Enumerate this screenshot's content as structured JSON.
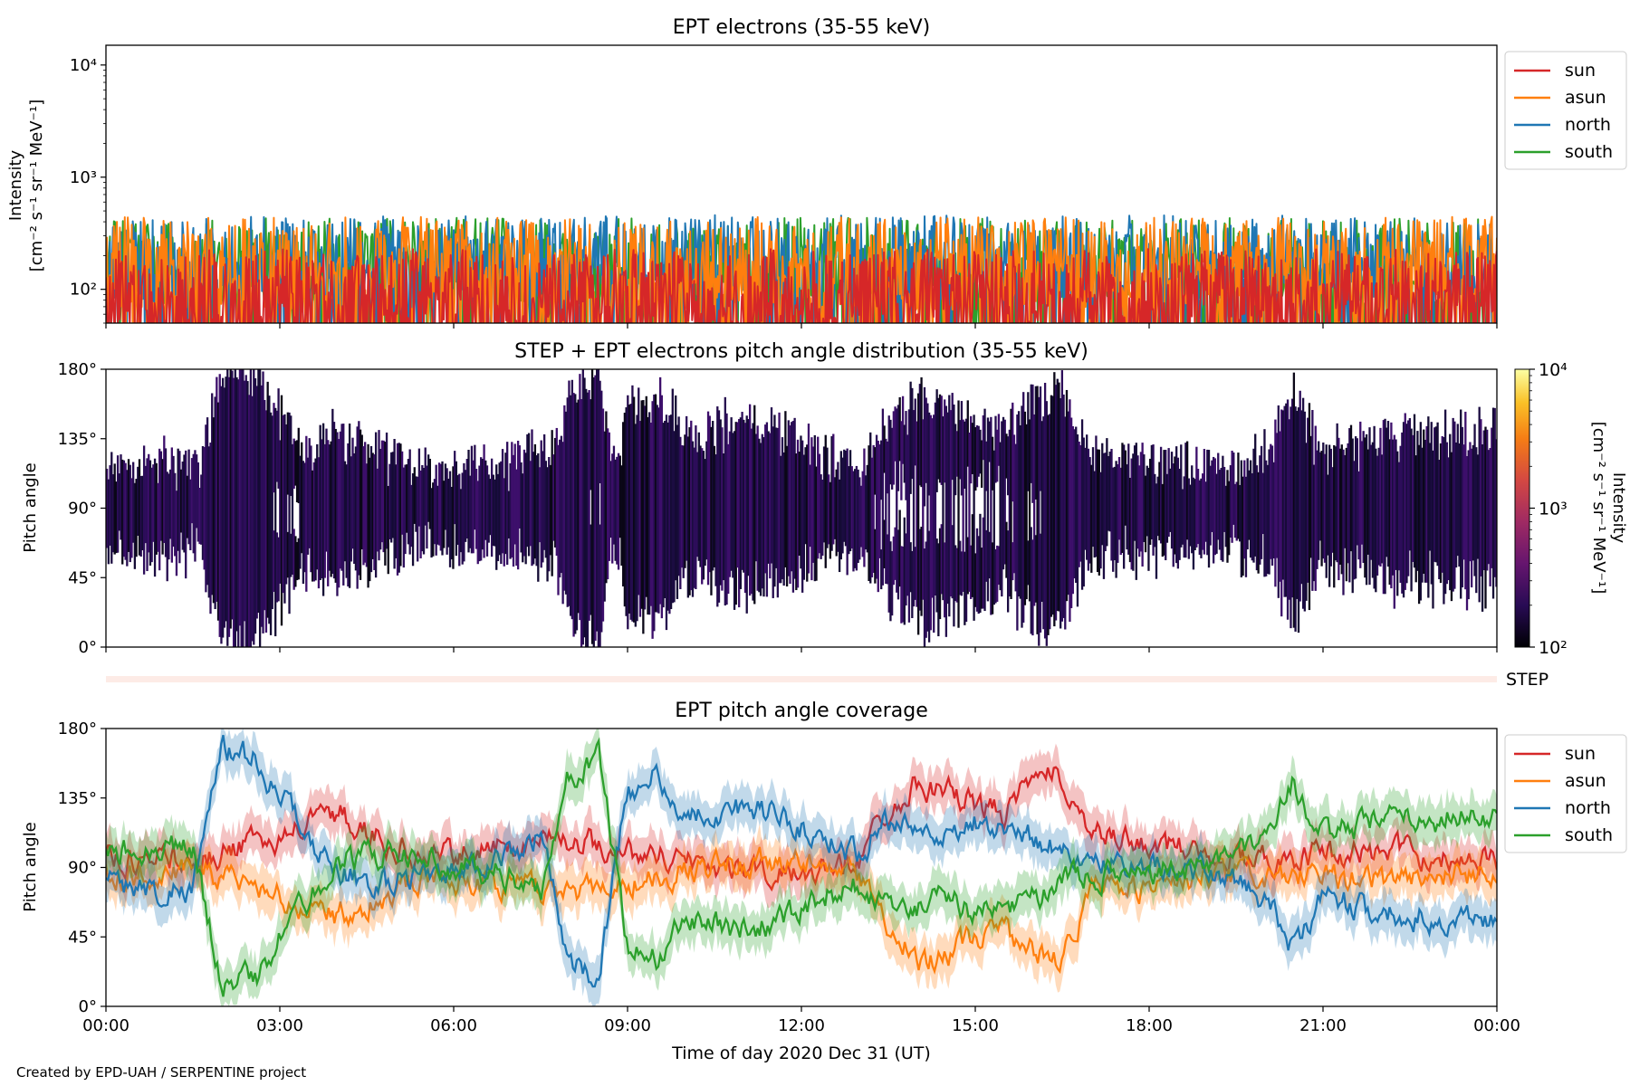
{
  "footer": "Created by EPD-UAH / SERPENTINE project",
  "colors": {
    "sun": "#d62728",
    "asun": "#ff7f0e",
    "north": "#1f77b4",
    "south": "#2ca02c"
  },
  "chart_data": [
    {
      "type": "line",
      "title": "EPT electrons (35-55 keV)",
      "ylabel_line1": "Intensity",
      "ylabel_line2": "[cm⁻² s⁻¹ sr⁻¹ MeV⁻¹]",
      "yscale": "log",
      "ylim": [
        50,
        15000
      ],
      "yticks": [
        {
          "value": 100,
          "label": "10²"
        },
        {
          "value": 1000,
          "label": "10³"
        },
        {
          "value": 10000,
          "label": "10⁴"
        }
      ],
      "xlim_hours": [
        0,
        24
      ],
      "legend": "upper-right-outside",
      "series": [
        {
          "name": "south",
          "color": "#2ca02c",
          "typical": 180,
          "spread": 0.55
        },
        {
          "name": "north",
          "color": "#1f77b4",
          "typical": 190,
          "spread": 0.55
        },
        {
          "name": "asun",
          "color": "#ff7f0e",
          "typical": 170,
          "spread": 0.6
        },
        {
          "name": "sun",
          "color": "#d62728",
          "typical": 95,
          "spread": 0.55
        }
      ],
      "legend_order": [
        "sun",
        "asun",
        "north",
        "south"
      ]
    },
    {
      "type": "heatmap",
      "title": "STEP + EPT electrons pitch angle distribution (35-55 keV)",
      "ylabel": "Pitch angle",
      "yticks": [
        "0°",
        "45°",
        "90°",
        "135°",
        "180°"
      ],
      "ylim_deg": [
        0,
        180
      ],
      "xlim_hours": [
        0,
        24
      ],
      "colorbar": {
        "scale": "log",
        "range": [
          100,
          10000
        ],
        "ticks": [
          "10²",
          "10³",
          "10⁴"
        ],
        "label": "Intensity",
        "unit": "[cm⁻² s⁻¹ sr⁻¹ MeV⁻¹]",
        "colormap": "inferno"
      },
      "step_label": "STEP"
    },
    {
      "type": "line",
      "title": "EPT pitch angle coverage",
      "ylabel": "Pitch angle",
      "yticks": [
        "0°",
        "45°",
        "90°",
        "135°",
        "180°"
      ],
      "ylim_deg": [
        0,
        180
      ],
      "xlim_hours": [
        0,
        24
      ],
      "xlabel": "Time of day 2020 Dec 31 (UT)",
      "xticks": [
        "00:00",
        "03:00",
        "06:00",
        "09:00",
        "12:00",
        "15:00",
        "18:00",
        "21:00",
        "00:00"
      ],
      "legend": "upper-right-outside",
      "legend_order": [
        "sun",
        "asun",
        "north",
        "south"
      ],
      "series": [
        {
          "name": "sun",
          "color": "#d62728",
          "hours": [
            0,
            1,
            2,
            2.6,
            3.3,
            4,
            4.7,
            5.5,
            6.3,
            7,
            7.7,
            8.5,
            9.2,
            10,
            10.8,
            11.5,
            12.3,
            13,
            13.5,
            14,
            14.5,
            15,
            15.5,
            16,
            16.5,
            17,
            18,
            19,
            20,
            21,
            22,
            23,
            24
          ],
          "pitch_deg": [
            95,
            95,
            98,
            105,
            115,
            125,
            110,
            95,
            100,
            105,
            110,
            105,
            100,
            95,
            90,
            85,
            88,
            95,
            130,
            145,
            140,
            130,
            125,
            145,
            150,
            110,
            105,
            100,
            95,
            100,
            100,
            98,
            95
          ]
        },
        {
          "name": "asun",
          "color": "#ff7f0e",
          "hours": [
            0,
            1,
            2,
            2.6,
            3.3,
            4,
            4.7,
            5.5,
            6.3,
            7,
            7.7,
            8.5,
            9.2,
            10,
            10.8,
            11.5,
            12.3,
            13,
            13.5,
            14,
            14.5,
            15,
            15.5,
            16,
            16.5,
            17,
            18,
            19,
            20,
            21,
            22,
            23,
            24
          ],
          "pitch_deg": [
            85,
            88,
            85,
            78,
            68,
            58,
            72,
            85,
            82,
            78,
            75,
            78,
            82,
            88,
            92,
            95,
            90,
            85,
            50,
            30,
            35,
            45,
            50,
            35,
            30,
            75,
            78,
            82,
            85,
            82,
            82,
            85,
            88
          ]
        },
        {
          "name": "north",
          "color": "#1f77b4",
          "hours": [
            0,
            1,
            1.5,
            2,
            2.6,
            3.3,
            4,
            5,
            6,
            7,
            7.5,
            8,
            8.5,
            9,
            9.5,
            10,
            10.8,
            11.5,
            12.3,
            13,
            13.5,
            14,
            14.5,
            15,
            15.5,
            16,
            16.5,
            17,
            18,
            19,
            20,
            20.5,
            21,
            22,
            23,
            24
          ],
          "pitch_deg": [
            80,
            75,
            78,
            165,
            160,
            120,
            85,
            80,
            90,
            95,
            110,
            30,
            20,
            140,
            150,
            120,
            130,
            125,
            110,
            100,
            120,
            115,
            110,
            120,
            115,
            110,
            100,
            95,
            92,
            88,
            70,
            35,
            70,
            60,
            58,
            55
          ]
        },
        {
          "name": "south",
          "color": "#2ca02c",
          "hours": [
            0,
            1,
            1.5,
            2,
            2.6,
            3.3,
            4,
            5,
            6,
            7,
            7.5,
            8,
            8.5,
            9,
            9.5,
            10,
            10.8,
            11.5,
            12.3,
            13,
            13.5,
            14,
            14.5,
            15,
            15.5,
            16,
            16.5,
            17,
            18,
            19,
            20,
            20.5,
            21,
            22,
            23,
            24
          ],
          "pitch_deg": [
            100,
            105,
            102,
            15,
            20,
            60,
            95,
            100,
            90,
            85,
            70,
            150,
            160,
            40,
            30,
            60,
            50,
            55,
            70,
            80,
            60,
            65,
            70,
            60,
            65,
            70,
            80,
            85,
            88,
            92,
            110,
            145,
            110,
            120,
            122,
            125
          ]
        }
      ]
    }
  ]
}
